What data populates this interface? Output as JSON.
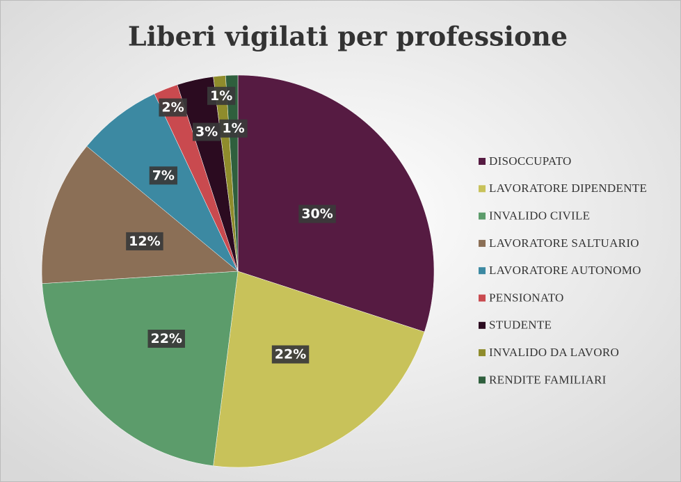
{
  "chart_data": {
    "type": "pie",
    "title": "Liberi vigilati per professione",
    "categories": [
      "DISOCCUPATO",
      "LAVORATORE DIPENDENTE",
      "INVALIDO CIVILE",
      "LAVORATORE SALTUARIO",
      "LAVORATORE AUTONOMO",
      "PENSIONATO",
      "STUDENTE",
      "INVALIDO DA LAVORO",
      "RENDITE FAMILIARI"
    ],
    "values": [
      30,
      22,
      22,
      12,
      7,
      2,
      3,
      1,
      1
    ],
    "value_labels": [
      "30%",
      "22%",
      "22%",
      "12%",
      "7%",
      "2%",
      "3%",
      "1%",
      "1%"
    ],
    "colors": [
      "#561b42",
      "#c8c25a",
      "#5c9c6b",
      "#8b6f56",
      "#3c89a2",
      "#c94a4f",
      "#2b0b20",
      "#8f8c2c",
      "#2f5f3d"
    ],
    "legend": "right"
  }
}
